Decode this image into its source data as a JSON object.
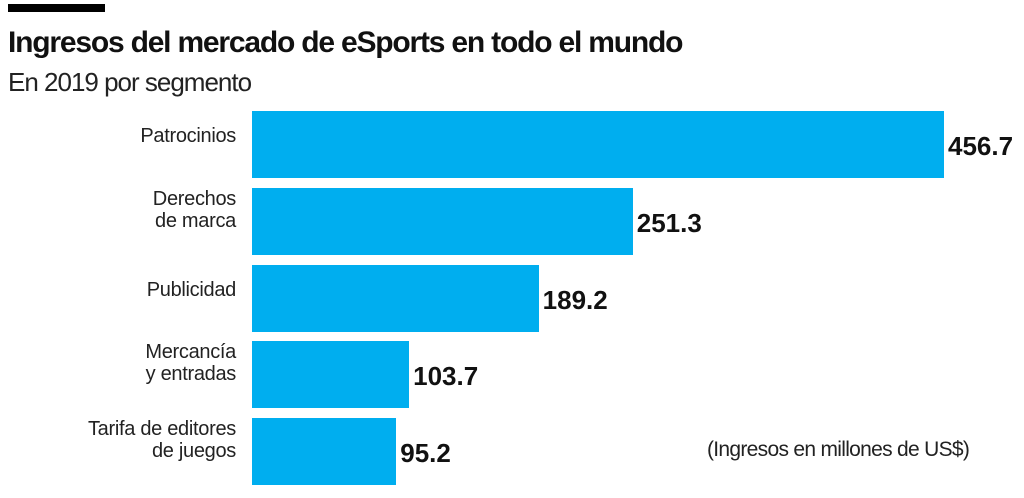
{
  "chart_data": {
    "type": "bar",
    "orientation": "horizontal",
    "title": "Ingresos del mercado de eSports en todo el mundo",
    "subtitle": "En 2019 por segmento",
    "categories": [
      [
        "Patrocinios"
      ],
      [
        "Derechos",
        "de marca"
      ],
      [
        "Publicidad"
      ],
      [
        "Mercancía",
        "y entradas"
      ],
      [
        "Tarifa de editores",
        "de juegos"
      ]
    ],
    "values": [
      456.7,
      251.3,
      189.2,
      103.7,
      95.2
    ],
    "value_labels": [
      "456.7",
      "251.3",
      "189.2",
      "103.7",
      "95.2"
    ],
    "note": "(Ingresos en millones de US$)",
    "bar_color": "#00AEEF",
    "grid": false
  }
}
